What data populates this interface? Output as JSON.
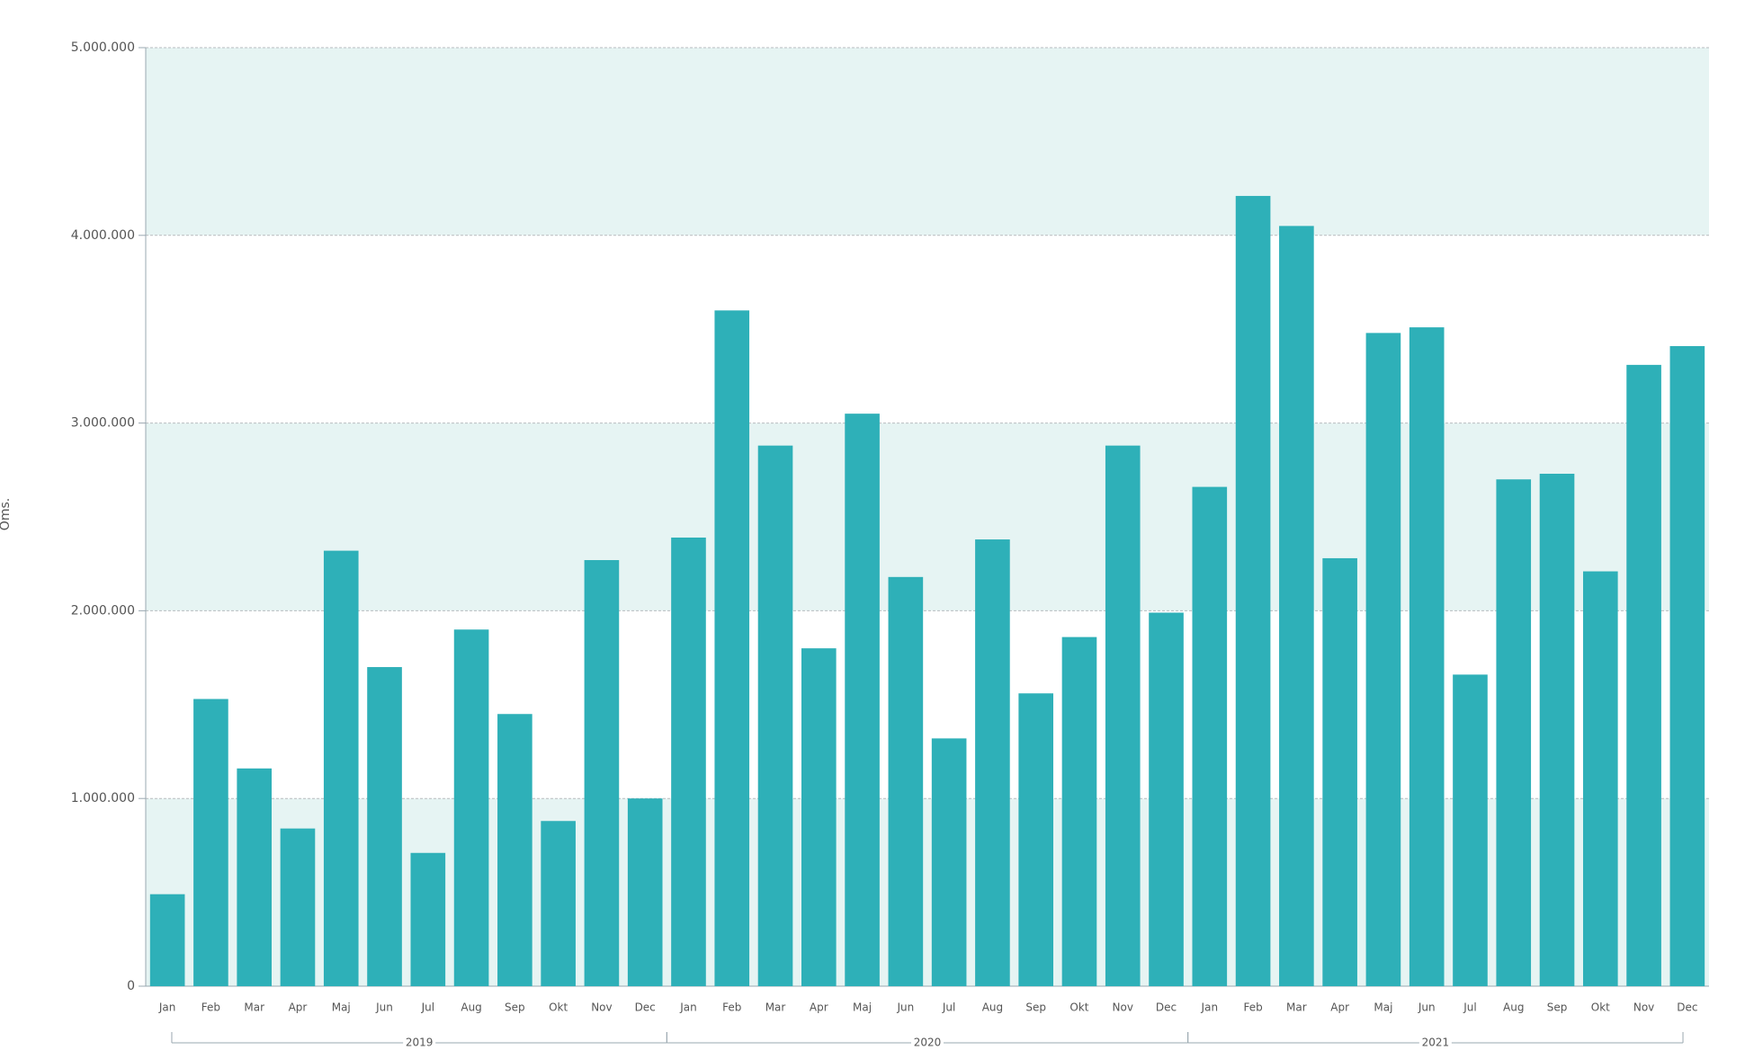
{
  "chart_data": {
    "type": "bar",
    "y_label": "Oms.",
    "categories": [
      "Jan",
      "Feb",
      "Mar",
      "Apr",
      "Maj",
      "Jun",
      "Jul",
      "Aug",
      "Sep",
      "Okt",
      "Nov",
      "Dec",
      "Jan",
      "Feb",
      "Mar",
      "Apr",
      "Maj",
      "Jun",
      "Jul",
      "Aug",
      "Sep",
      "Okt",
      "Nov",
      "Dec",
      "Jan",
      "Feb",
      "Mar",
      "Apr",
      "Maj",
      "Jun",
      "Jul",
      "Aug",
      "Sep",
      "Okt",
      "Nov",
      "Dec"
    ],
    "groups": [
      {
        "label": "2019",
        "size": 12
      },
      {
        "label": "2020",
        "size": 12
      },
      {
        "label": "2021",
        "size": 12
      }
    ],
    "values": [
      490000,
      1530000,
      1160000,
      840000,
      2320000,
      1700000,
      710000,
      1900000,
      1450000,
      880000,
      2270000,
      1000000,
      2390000,
      3600000,
      2880000,
      1800000,
      3050000,
      2180000,
      1320000,
      2380000,
      1560000,
      1860000,
      2880000,
      1990000,
      2660000,
      4210000,
      4050000,
      2280000,
      3480000,
      3510000,
      1660000,
      2700000,
      2730000,
      2210000,
      3310000,
      3410000
    ],
    "color": "#2eb0b8",
    "band_color": "#e6f4f3",
    "ylim": [
      0,
      5000000
    ],
    "yticks": [
      {
        "value": 0,
        "label": "0"
      },
      {
        "value": 1000000,
        "label": "1.000.000"
      },
      {
        "value": 2000000,
        "label": "2.000.000"
      },
      {
        "value": 3000000,
        "label": "3.000.000"
      },
      {
        "value": 4000000,
        "label": "4.000.000"
      },
      {
        "value": 5000000,
        "label": "5.000.000"
      }
    ],
    "grid": true
  }
}
